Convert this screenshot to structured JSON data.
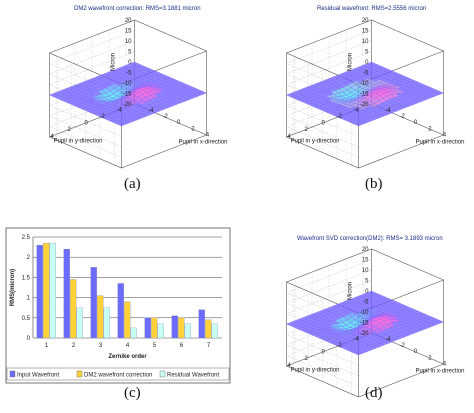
{
  "colors": {
    "mesh_low": "#6a5cff",
    "mesh_high": "#ff3dd2",
    "cyan": "#38e0f0",
    "bar_input": "#6b6bff",
    "bar_dm2": "#ffd23a",
    "bar_residual": "#c8fff4",
    "title_text": "#1a2a8a"
  },
  "panels": {
    "a": {
      "caption": "(a)",
      "title": "DM2 wavefront correction: RMS=3.1881 micron",
      "zlabel": "Micron",
      "ylabel": "Pupil in y-direction",
      "xlabel": "Pupil in x-direction",
      "zticks": [
        "20",
        "15",
        "10",
        "5",
        "0",
        "-5",
        "-10",
        "-15",
        "-20"
      ],
      "yticks": [
        "4",
        "2",
        "0",
        "-2",
        "-4"
      ],
      "xticks": [
        "-4",
        "-2",
        "0",
        "2",
        "4"
      ]
    },
    "b": {
      "caption": "(b)",
      "title": "Residual wavefront: RMS=2.5556 micron",
      "zlabel": "Micron",
      "ylabel": "Pupil in y-direction",
      "xlabel": "Pupil in x-direction",
      "zticks": [
        "20",
        "15",
        "10",
        "5",
        "0",
        "-5",
        "-10",
        "-15",
        "-20"
      ],
      "yticks": [
        "4",
        "2",
        "0",
        "-2",
        "-4"
      ],
      "xticks": [
        "-4",
        "-2",
        "0",
        "2",
        "4"
      ]
    },
    "d": {
      "caption": "(d)",
      "title": "Wavefront SVD correction(DM2): RMS= 3.1893 micron",
      "zlabel": "Micron",
      "ylabel": "Pupil in y-direction",
      "xlabel": "Pupil in x-direction",
      "zticks": [
        "20",
        "15",
        "10",
        "5",
        "0",
        "-5",
        "-10",
        "-15",
        "-20"
      ],
      "yticks": [
        "4",
        "2",
        "0",
        "-2",
        "-4"
      ],
      "xticks": [
        "-4",
        "-2",
        "0",
        "2",
        "4"
      ]
    }
  },
  "chart_data": [
    {
      "type": "bar",
      "panel": "(c)",
      "ylabel": "RMS(micron)",
      "xlabel": "Zernike order",
      "categories": [
        "1",
        "2",
        "3",
        "4",
        "5",
        "6",
        "7"
      ],
      "yticks": [
        "0",
        "0.5",
        "1",
        "1.5",
        "2",
        "2.5"
      ],
      "ylim": [
        0,
        2.5
      ],
      "series": [
        {
          "name": "Input Wavefront",
          "values": [
            2.3,
            2.2,
            1.75,
            1.35,
            0.5,
            0.55,
            0.7
          ]
        },
        {
          "name": "DM2 wavefront correction",
          "values": [
            2.35,
            1.45,
            1.05,
            0.9,
            0.5,
            0.5,
            0.45
          ]
        },
        {
          "name": "Residual Wavefront",
          "values": [
            2.35,
            0.75,
            0.75,
            0.25,
            0.35,
            0.35,
            0.35
          ]
        }
      ],
      "legend": "bottom",
      "grid": true
    }
  ]
}
